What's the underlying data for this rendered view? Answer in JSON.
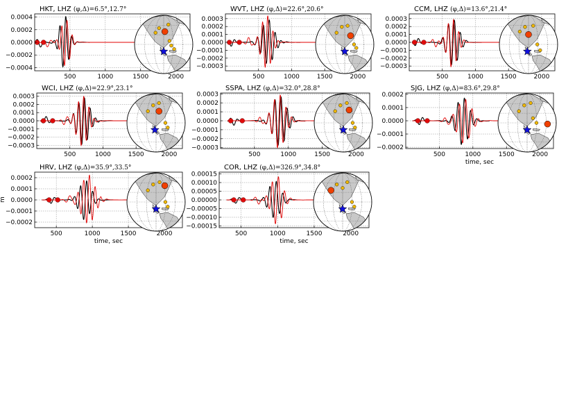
{
  "figure": {
    "ylabel_fragment": "m"
  },
  "chart_data": [
    {
      "type": "line",
      "station": "HKT, LHZ",
      "title_prefix": "HKT, LHZ",
      "title_math": "(φ,Δ)=6.5°,12.7°",
      "xlim": [
        0,
        2200
      ],
      "ylim": [
        -0.00045,
        0.00045
      ],
      "xticks": [
        500,
        1000,
        1500,
        2000
      ],
      "xtick_labels": [
        "500",
        "1000",
        "1500",
        "2000"
      ],
      "yticks": [
        0.0004,
        0.0002,
        0.0,
        -0.0002,
        -0.0004
      ],
      "ytick_labels": [
        "0.0004",
        "0.0002",
        "0.0000",
        "−0.0002",
        "−0.0004"
      ],
      "xlabel": "",
      "grid": true,
      "series": [
        {
          "color": "#000000",
          "signal": [
            0,
            1000
          ],
          "markers": [
            35,
            125
          ],
          "packet": {
            "center": 420,
            "width": 90,
            "period": 85,
            "amp": 0.00042
          }
        },
        {
          "color": "#e00000",
          "signal": [
            0,
            2200
          ],
          "markers": [],
          "packet": {
            "center": 440,
            "width": 85,
            "period": 75,
            "amp": 0.00038
          }
        }
      ],
      "globe": {
        "star": [
          0.5,
          0.62
        ],
        "big": [
          0.52,
          0.28
        ],
        "stations": [
          [
            0.36,
            0.3
          ],
          [
            0.42,
            0.22
          ],
          [
            0.6,
            0.44
          ],
          [
            0.63,
            0.52
          ],
          [
            0.68,
            0.58
          ],
          [
            0.58,
            0.16
          ]
        ]
      }
    },
    {
      "type": "line",
      "station": "WVT, LHZ",
      "title_prefix": "WVT, LHZ",
      "title_math": "(φ,Δ)=22.6°,20.6°",
      "xlim": [
        0,
        2200
      ],
      "ylim": [
        -0.00036,
        0.00036
      ],
      "xticks": [
        500,
        1000,
        1500,
        2000
      ],
      "xtick_labels": [
        "500",
        "1000",
        "1500",
        "2000"
      ],
      "yticks": [
        0.0003,
        0.0002,
        0.0001,
        0.0,
        -0.0001,
        -0.0002,
        -0.0003
      ],
      "ytick_labels": [
        "0.0003",
        "0.0002",
        "0.0001",
        "0.0000",
        "−0.0001",
        "−0.0002",
        "−0.0003"
      ],
      "xlabel": "",
      "grid": true,
      "series": [
        {
          "color": "#000000",
          "signal": [
            50,
            1150
          ],
          "markers": [
            60,
            210
          ],
          "packet": {
            "center": 640,
            "width": 130,
            "period": 90,
            "amp": 0.00028
          }
        },
        {
          "color": "#e00000",
          "signal": [
            50,
            2200
          ],
          "markers": [],
          "packet": {
            "center": 620,
            "width": 110,
            "period": 80,
            "amp": 0.00034
          }
        }
      ],
      "globe": {
        "star": [
          0.5,
          0.62
        ],
        "big": [
          0.6,
          0.35
        ],
        "stations": [
          [
            0.36,
            0.3
          ],
          [
            0.45,
            0.2
          ],
          [
            0.66,
            0.5
          ],
          [
            0.7,
            0.56
          ],
          [
            0.55,
            0.18
          ]
        ]
      }
    },
    {
      "type": "line",
      "station": "CCM, LHZ",
      "title_prefix": "CCM, LHZ",
      "title_math": "(φ,Δ)=13.6°,21.4°",
      "xlim": [
        0,
        2200
      ],
      "ylim": [
        -0.00036,
        0.00036
      ],
      "xticks": [
        500,
        1000,
        1500,
        2000
      ],
      "xtick_labels": [
        "500",
        "1000",
        "1500",
        "2000"
      ],
      "yticks": [
        0.0003,
        0.0002,
        0.0001,
        0.0,
        -0.0001,
        -0.0002,
        -0.0003
      ],
      "ytick_labels": [
        "0.0003",
        "0.0002",
        "0.0001",
        "0.0000",
        "−0.0001",
        "−0.0002",
        "−0.0003"
      ],
      "xlabel": "",
      "grid": true,
      "series": [
        {
          "color": "#000000",
          "signal": [
            50,
            1150
          ],
          "markers": [
            80,
            220
          ],
          "packet": {
            "center": 660,
            "width": 120,
            "period": 90,
            "amp": 0.0003
          }
        },
        {
          "color": "#e00000",
          "signal": [
            50,
            2200
          ],
          "markers": [],
          "packet": {
            "center": 650,
            "width": 110,
            "period": 80,
            "amp": 0.00031
          }
        }
      ],
      "globe": {
        "star": [
          0.48,
          0.62
        ],
        "big": [
          0.5,
          0.33
        ],
        "stations": [
          [
            0.35,
            0.28
          ],
          [
            0.44,
            0.2
          ],
          [
            0.65,
            0.5
          ],
          [
            0.7,
            0.6
          ],
          [
            0.58,
            0.18
          ]
        ]
      }
    },
    {
      "type": "line",
      "station": "WCI, LHZ",
      "title_prefix": "WCI, LHZ",
      "title_math": "(φ,Δ)=22.9°,23.1°",
      "xlim": [
        0,
        2200
      ],
      "ylim": [
        -0.00034,
        0.00034
      ],
      "xticks": [
        500,
        1000,
        1500,
        2000
      ],
      "xtick_labels": [
        "500",
        "1000",
        "1500",
        "2000"
      ],
      "yticks": [
        0.0003,
        0.0002,
        0.0001,
        0.0,
        -0.0001,
        -0.0002,
        -0.0003
      ],
      "ytick_labels": [
        "0.0003",
        "0.0002",
        "0.0001",
        "0.0000",
        "−0.0001",
        "−0.0002",
        "−0.0003"
      ],
      "xlabel": "",
      "grid": true,
      "series": [
        {
          "color": "#000000",
          "signal": [
            50,
            1150
          ],
          "markers": [
            100,
            240
          ],
          "packet": {
            "center": 700,
            "width": 130,
            "period": 85,
            "amp": 0.00029
          }
        },
        {
          "color": "#e00000",
          "signal": [
            50,
            2200
          ],
          "markers": [],
          "packet": {
            "center": 690,
            "width": 120,
            "period": 80,
            "amp": 0.00031
          }
        }
      ],
      "globe": {
        "star": [
          0.48,
          0.62
        ],
        "big": [
          0.55,
          0.3
        ],
        "stations": [
          [
            0.36,
            0.3
          ],
          [
            0.45,
            0.2
          ],
          [
            0.66,
            0.5
          ],
          [
            0.7,
            0.58
          ],
          [
            0.55,
            0.16
          ]
        ]
      }
    },
    {
      "type": "line",
      "station": "SSPA, LHZ",
      "title_prefix": "SSPA, LHZ",
      "title_math": "(φ,Δ)=32.0°,28.8°",
      "xlim": [
        0,
        2200
      ],
      "ylim": [
        -0.00031,
        0.00031
      ],
      "xticks": [
        500,
        1000,
        1500,
        2000
      ],
      "xtick_labels": [
        "500",
        "1000",
        "1500",
        "2000"
      ],
      "yticks": [
        0.0003,
        0.0002,
        0.0001,
        0.0,
        -0.0001,
        -0.0002,
        -0.0003
      ],
      "ytick_labels": [
        "0.0003",
        "0.0002",
        "0.0001",
        "0.0000",
        "−0.0001",
        "−0.0002",
        "−0.0003"
      ],
      "xlabel": "",
      "grid": true,
      "series": [
        {
          "color": "#000000",
          "signal": [
            100,
            1250
          ],
          "markers": [
            150,
            320
          ],
          "packet": {
            "center": 870,
            "width": 140,
            "period": 90,
            "amp": 0.00028
          }
        },
        {
          "color": "#e00000",
          "signal": [
            100,
            2200
          ],
          "markers": [],
          "packet": {
            "center": 860,
            "width": 130,
            "period": 85,
            "amp": 0.0003
          }
        }
      ],
      "globe": {
        "star": [
          0.5,
          0.62
        ],
        "big": [
          0.6,
          0.28
        ],
        "stations": [
          [
            0.36,
            0.3
          ],
          [
            0.45,
            0.2
          ],
          [
            0.66,
            0.5
          ],
          [
            0.7,
            0.58
          ],
          [
            0.56,
            0.16
          ]
        ]
      }
    },
    {
      "type": "line",
      "station": "SJG, LHZ",
      "title_prefix": "SJG, LHZ",
      "title_math": "(φ,Δ)=83.6°,29.8°",
      "xlim": [
        0,
        2200
      ],
      "ylim": [
        -0.00021,
        0.00021
      ],
      "xticks": [
        500,
        1000,
        1500,
        2000
      ],
      "xtick_labels": [
        "500",
        "1000",
        "1500",
        "2000"
      ],
      "yticks": [
        0.0002,
        0.0001,
        0.0,
        -0.0001,
        -0.0002
      ],
      "ytick_labels": [
        "0.0002",
        "0.0001",
        "0.0000",
        "−0.0001",
        "−0.0002"
      ],
      "xlabel": "time, sec",
      "grid": true,
      "series": [
        {
          "color": "#000000",
          "signal": [
            100,
            1250
          ],
          "markers": [
            180,
            320
          ],
          "packet": {
            "center": 850,
            "width": 130,
            "period": 95,
            "amp": 0.00018
          }
        },
        {
          "color": "#e00000",
          "signal": [
            100,
            2200
          ],
          "markers": [],
          "packet": {
            "center": 870,
            "width": 140,
            "period": 95,
            "amp": 0.00017
          }
        }
      ],
      "globe": {
        "star": [
          0.5,
          0.62
        ],
        "big": [
          0.85,
          0.52
        ],
        "stations": [
          [
            0.36,
            0.3
          ],
          [
            0.45,
            0.2
          ],
          [
            0.6,
            0.42
          ],
          [
            0.66,
            0.5
          ],
          [
            0.56,
            0.16
          ]
        ]
      }
    },
    {
      "type": "line",
      "station": "HRV, LHZ",
      "title_prefix": "HRV, LHZ",
      "title_math": "(φ,Δ)=35.9°,33.5°",
      "xlim": [
        200,
        2250
      ],
      "ylim": [
        -0.00025,
        0.00025
      ],
      "xticks": [
        500,
        1000,
        1500,
        2000
      ],
      "xtick_labels": [
        "500",
        "1000",
        "1500",
        "2000"
      ],
      "yticks": [
        0.0002,
        0.0001,
        0.0,
        -0.0001,
        -0.0002
      ],
      "ytick_labels": [
        "0.0002",
        "0.0001",
        "0.0000",
        "−0.0001",
        "−0.0002"
      ],
      "xlabel": "time, sec",
      "grid": true,
      "series": [
        {
          "color": "#000000",
          "signal": [
            300,
            1300
          ],
          "markers": [
            400,
            520
          ],
          "packet": {
            "center": 900,
            "width": 110,
            "period": 85,
            "amp": 0.00018
          }
        },
        {
          "color": "#e00000",
          "signal": [
            300,
            2250
          ],
          "markers": [],
          "packet": {
            "center": 940,
            "width": 130,
            "period": 80,
            "amp": 0.00022
          }
        }
      ],
      "globe": {
        "star": [
          0.5,
          0.62
        ],
        "big": [
          0.65,
          0.22
        ],
        "stations": [
          [
            0.36,
            0.3
          ],
          [
            0.45,
            0.2
          ],
          [
            0.66,
            0.5
          ],
          [
            0.7,
            0.58
          ],
          [
            0.56,
            0.16
          ]
        ]
      }
    },
    {
      "type": "line",
      "station": "COR, LHZ",
      "title_prefix": "COR, LHZ",
      "title_math": "(φ,Δ)=326.9°,34.8°",
      "xlim": [
        200,
        2250
      ],
      "ylim": [
        -0.00016,
        0.00016
      ],
      "xticks": [
        500,
        1000,
        1500,
        2000
      ],
      "xtick_labels": [
        "500",
        "1000",
        "1500",
        "2000"
      ],
      "yticks": [
        0.00015,
        0.0001,
        5e-05,
        0.0,
        -5e-05,
        -0.0001,
        -0.00015
      ],
      "ytick_labels": [
        "0.00015",
        "0.00010",
        "0.00005",
        "0.00000",
        "−0.00005",
        "−0.00010",
        "−0.00015"
      ],
      "xlabel": "time, sec",
      "grid": true,
      "series": [
        {
          "color": "#000000",
          "signal": [
            300,
            1300
          ],
          "markers": [
            400,
            530
          ],
          "packet": {
            "center": 960,
            "width": 110,
            "period": 90,
            "amp": 0.00011
          }
        },
        {
          "color": "#e00000",
          "signal": [
            300,
            2250
          ],
          "markers": [],
          "packet": {
            "center": 990,
            "width": 110,
            "period": 85,
            "amp": 0.00014
          }
        }
      ],
      "globe": {
        "star": [
          0.5,
          0.62
        ],
        "big": [
          0.3,
          0.3
        ],
        "stations": [
          [
            0.4,
            0.2
          ],
          [
            0.5,
            0.26
          ],
          [
            0.66,
            0.5
          ],
          [
            0.7,
            0.58
          ],
          [
            0.58,
            0.16
          ]
        ]
      }
    }
  ]
}
